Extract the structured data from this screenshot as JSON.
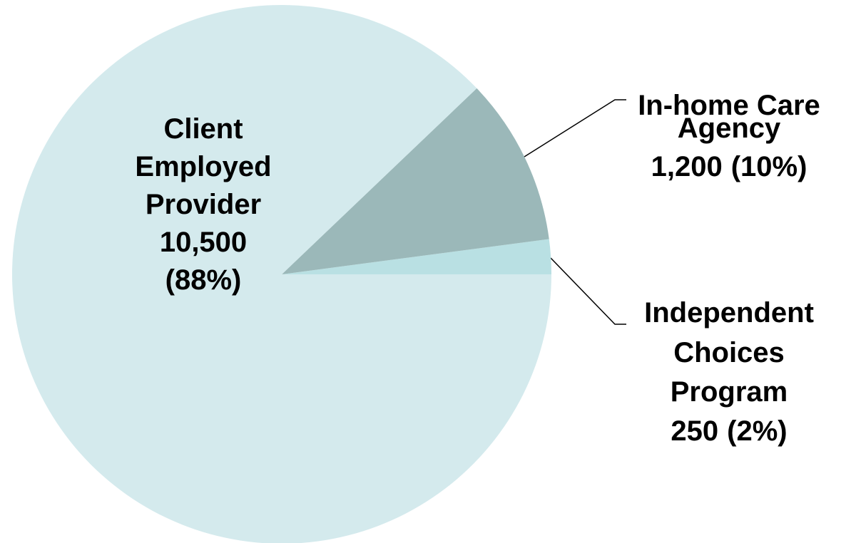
{
  "chart_data": {
    "type": "pie",
    "categories": [
      [
        "Client",
        "Employed",
        "Provider"
      ],
      [
        "In-home Care",
        "Agency"
      ],
      [
        "Independent",
        "Choices",
        "Program"
      ]
    ],
    "values": [
      10500,
      1200,
      250
    ],
    "value_labels": [
      "10,500",
      "1,200",
      "250"
    ],
    "percent_labels": [
      "(88%)",
      "(10%)",
      "(2%)"
    ],
    "colors": [
      "#d4eaed",
      "#9bb8b9",
      "#b9e0e3"
    ]
  }
}
